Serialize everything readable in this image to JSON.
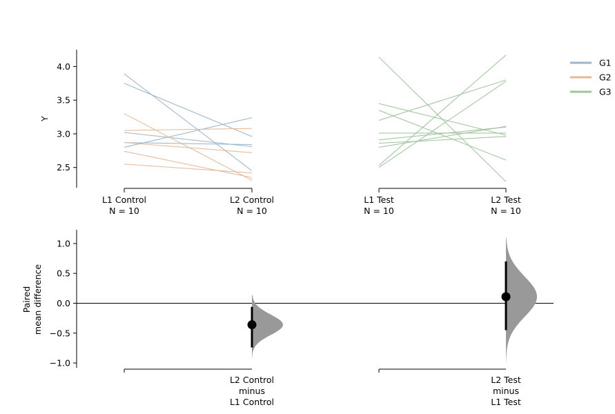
{
  "chart_data": [
    {
      "type": "line",
      "subtype": "paired-slopegraph",
      "ylabel": "Y",
      "ylim": [
        2.2,
        4.25
      ],
      "yticks": [
        "2.5",
        "3.0",
        "3.5",
        "4.0"
      ],
      "groups": [
        {
          "label": "L1 Control",
          "n": "N = 10"
        },
        {
          "label": "L2 Control",
          "n": "N = 10"
        },
        {
          "label": "L1 Test",
          "n": "N = 10"
        },
        {
          "label": "L2 Test",
          "n": "N = 10"
        }
      ],
      "legend": {
        "placement": "top-right",
        "entries": [
          {
            "name": "G1",
            "color": "#9cb4c8"
          },
          {
            "name": "G2",
            "color": "#e4b898"
          },
          {
            "name": "G3",
            "color": "#9fc49c"
          }
        ]
      },
      "pairs": [
        {
          "group": "G1",
          "block": "control",
          "y": [
            3.89,
            2.45
          ]
        },
        {
          "group": "G1",
          "block": "control",
          "y": [
            3.75,
            2.96
          ]
        },
        {
          "group": "G1",
          "block": "control",
          "y": [
            3.02,
            2.81
          ]
        },
        {
          "group": "G1",
          "block": "control",
          "y": [
            2.8,
            3.24
          ]
        },
        {
          "group": "G1",
          "block": "control",
          "y": [
            2.87,
            2.84
          ]
        },
        {
          "group": "G2",
          "block": "control",
          "y": [
            3.3,
            2.31
          ]
        },
        {
          "group": "G2",
          "block": "control",
          "y": [
            3.05,
            3.08
          ]
        },
        {
          "group": "G2",
          "block": "control",
          "y": [
            2.87,
            2.72
          ]
        },
        {
          "group": "G2",
          "block": "control",
          "y": [
            2.74,
            2.35
          ]
        },
        {
          "group": "G2",
          "block": "control",
          "y": [
            2.55,
            2.42
          ]
        },
        {
          "group": "G3",
          "block": "test",
          "y": [
            4.14,
            2.29
          ]
        },
        {
          "group": "G3",
          "block": "test",
          "y": [
            3.45,
            2.98
          ]
        },
        {
          "group": "G3",
          "block": "test",
          "y": [
            3.35,
            2.61
          ]
        },
        {
          "group": "G3",
          "block": "test",
          "y": [
            3.2,
            3.8
          ]
        },
        {
          "group": "G3",
          "block": "test",
          "y": [
            3.01,
            3.01
          ]
        },
        {
          "group": "G3",
          "block": "test",
          "y": [
            2.91,
            3.1
          ]
        },
        {
          "group": "G3",
          "block": "test",
          "y": [
            2.86,
            2.96
          ]
        },
        {
          "group": "G3",
          "block": "test",
          "y": [
            2.8,
            3.11
          ]
        },
        {
          "group": "G3",
          "block": "test",
          "y": [
            2.53,
            4.17
          ]
        },
        {
          "group": "G3",
          "block": "test",
          "y": [
            2.5,
            3.78
          ]
        }
      ]
    },
    {
      "type": "scatter",
      "subtype": "effect-size-distribution",
      "ylabel": [
        "Paired",
        "mean difference"
      ],
      "ylim": [
        -1.08,
        1.23
      ],
      "yticks": [
        "−1.0",
        "−0.5",
        "0.0",
        "0.5",
        "1.0"
      ],
      "zero_line": true,
      "fill_color": "#999999",
      "contrasts": [
        {
          "label": [
            "L2 Control",
            "minus",
            "L1 Control"
          ],
          "mean": -0.36,
          "ci": [
            -0.74,
            -0.06
          ],
          "range": [
            -0.92,
            0.14
          ]
        },
        {
          "label": [
            "L2 Test",
            "minus",
            "L1 Test"
          ],
          "mean": 0.11,
          "ci": [
            -0.45,
            0.7
          ],
          "range": [
            -0.98,
            1.1
          ]
        }
      ]
    }
  ]
}
